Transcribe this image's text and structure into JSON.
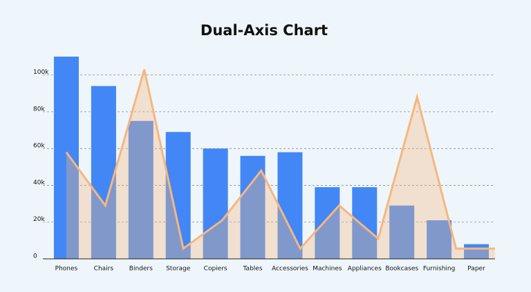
{
  "chart_data": {
    "type": "bar",
    "title": "Dual-Axis Chart",
    "categories": [
      "Phones",
      "Chairs",
      "Binders",
      "Storage",
      "Copiers",
      "Tables",
      "Accessories",
      "Machines",
      "Appliances",
      "Bookcases",
      "Furnishing",
      "Paper"
    ],
    "series": [
      {
        "type": "bar",
        "color": "#4287f5",
        "values": [
          110000,
          94000,
          75000,
          69000,
          60000,
          56000,
          58000,
          39000,
          39000,
          29000,
          21000,
          8000
        ]
      },
      {
        "type": "area",
        "color": "#f5b77e",
        "values": [
          58000,
          29000,
          103000,
          5600,
          21000,
          48000,
          5600,
          29000,
          11000,
          88000,
          5600,
          5600
        ]
      }
    ],
    "ylim": [
      0,
      110000
    ],
    "yticks": [
      {
        "value": 0,
        "label": "0"
      },
      {
        "value": 20000,
        "label": "20k"
      },
      {
        "value": 40000,
        "label": "40k"
      },
      {
        "value": 60000,
        "label": "60k"
      },
      {
        "value": 80000,
        "label": "80k"
      },
      {
        "value": 100000,
        "label": "100k"
      }
    ],
    "grid": true
  }
}
